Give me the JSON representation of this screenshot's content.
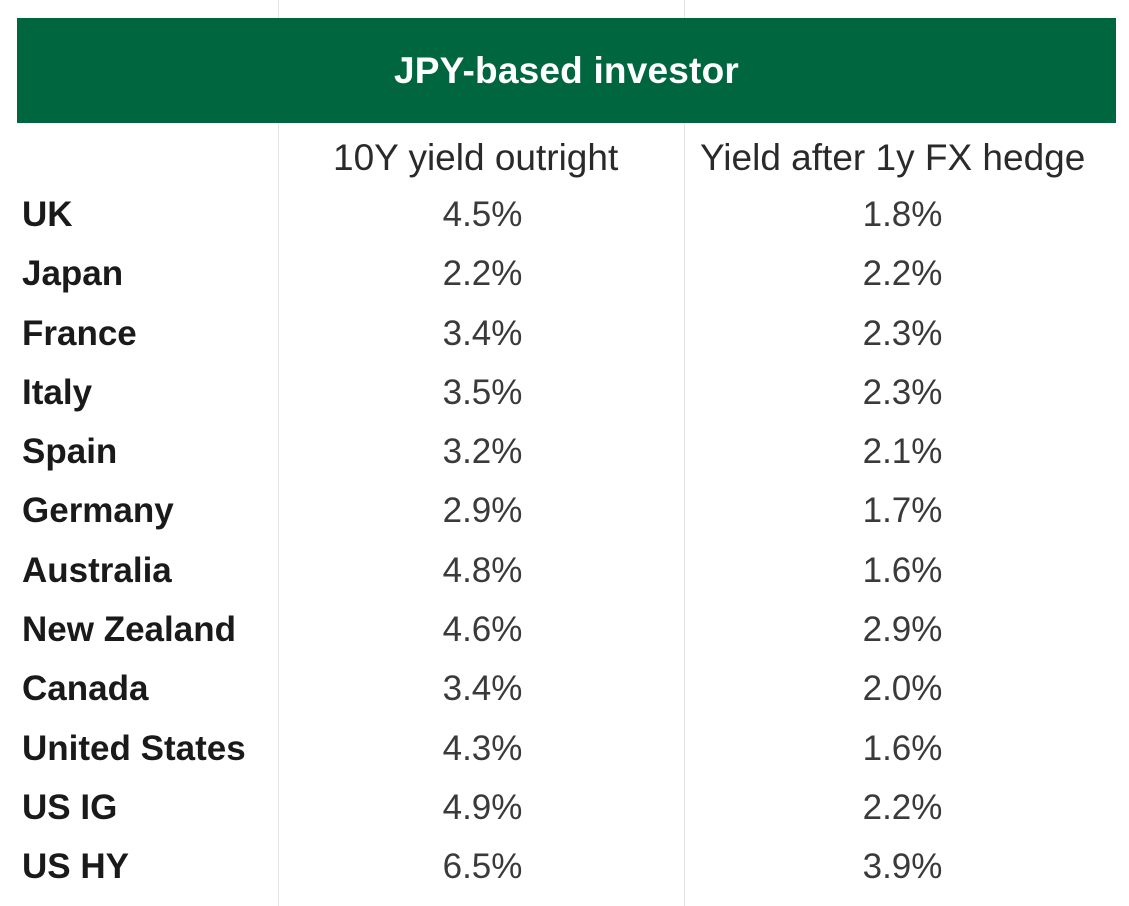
{
  "chart_data": {
    "type": "table",
    "title": "JPY-based investor",
    "columns": [
      "10Y yield outright",
      "Yield after 1y FX hedge"
    ],
    "rows": [
      {
        "label": "UK",
        "values": [
          "4.5%",
          "1.8%"
        ]
      },
      {
        "label": "Japan",
        "values": [
          "2.2%",
          "2.2%"
        ]
      },
      {
        "label": "France",
        "values": [
          "3.4%",
          "2.3%"
        ]
      },
      {
        "label": "Italy",
        "values": [
          "3.5%",
          "2.3%"
        ]
      },
      {
        "label": "Spain",
        "values": [
          "3.2%",
          "2.1%"
        ]
      },
      {
        "label": "Germany",
        "values": [
          "2.9%",
          "1.7%"
        ]
      },
      {
        "label": "Australia",
        "values": [
          "4.8%",
          "1.6%"
        ]
      },
      {
        "label": "New Zealand",
        "values": [
          "4.6%",
          "2.9%"
        ]
      },
      {
        "label": "Canada",
        "values": [
          "3.4%",
          "2.0%"
        ]
      },
      {
        "label": "United States",
        "values": [
          "4.3%",
          "1.6%"
        ]
      },
      {
        "label": "US IG",
        "values": [
          "4.9%",
          "2.2%"
        ]
      },
      {
        "label": "US HY",
        "values": [
          "6.5%",
          "3.9%"
        ]
      }
    ],
    "colors": {
      "header_bg": "#00663f",
      "header_text": "#ffffff"
    }
  }
}
